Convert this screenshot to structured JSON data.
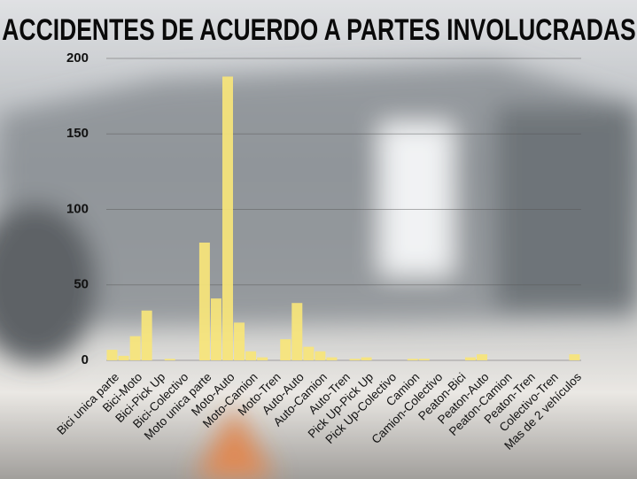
{
  "chart_data": {
    "type": "bar",
    "title": "ACCIDENTES DE ACUERDO A PARTES INVOLUCRADAS",
    "categories": [
      "Bici unica parte",
      null,
      "Bici-Moto",
      null,
      "Bici-Pick Up",
      null,
      "Bici-Colectivo",
      null,
      "Moto unica parte",
      null,
      "Moto-Auto",
      null,
      "Moto-Camion",
      null,
      "Moto-Tren",
      null,
      "Auto-Auto",
      null,
      "Auto-Camion",
      null,
      "Auto-Tren",
      null,
      "Pick Up-Pick Up",
      null,
      "Pick Up-Colectivo",
      null,
      "Camion",
      null,
      "Camion-Colectivo",
      null,
      "Peaton-Bici",
      null,
      "Peaton-Auto",
      null,
      "Peaton-Camion",
      null,
      "Peaton-Tren",
      null,
      "Colectivo-Tren",
      null,
      "Mas de 2 vehículos",
      null
    ],
    "values": [
      7,
      3,
      16,
      33,
      0,
      1,
      0,
      0,
      78,
      41,
      188,
      25,
      6,
      2,
      0,
      14,
      38,
      9,
      6,
      2,
      0,
      1,
      2,
      0,
      0,
      0,
      1,
      1,
      0,
      0,
      0,
      2,
      4,
      0,
      0,
      0,
      0,
      0,
      0,
      0,
      4,
      0
    ],
    "color": "#f7e57a",
    "ylim": [
      0,
      200
    ],
    "yticks": [
      0,
      50,
      100,
      150,
      200
    ],
    "grid": true
  }
}
